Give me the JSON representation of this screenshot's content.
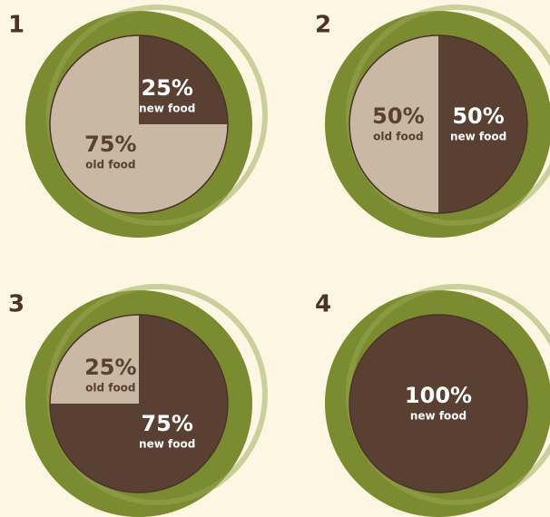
{
  "chart_data": [
    {
      "type": "pie",
      "title": "1",
      "categories": [
        "new food",
        "old food"
      ],
      "values": [
        25,
        75
      ],
      "value_labels": [
        "25%",
        "75%"
      ],
      "colors": [
        "#5a4032",
        "#c8b8a4"
      ]
    },
    {
      "type": "pie",
      "title": "2",
      "categories": [
        "new food",
        "old food"
      ],
      "values": [
        50,
        50
      ],
      "value_labels": [
        "50%",
        "50%"
      ],
      "colors": [
        "#5a4032",
        "#c8b8a4"
      ]
    },
    {
      "type": "pie",
      "title": "3",
      "categories": [
        "new food",
        "old food"
      ],
      "values": [
        75,
        25
      ],
      "value_labels": [
        "75%",
        "25%"
      ],
      "colors": [
        "#5a4032",
        "#c8b8a4"
      ]
    },
    {
      "type": "pie",
      "title": "4",
      "categories": [
        "new food"
      ],
      "values": [
        100
      ],
      "value_labels": [
        "100%"
      ],
      "colors": [
        "#5a4032"
      ]
    }
  ]
}
